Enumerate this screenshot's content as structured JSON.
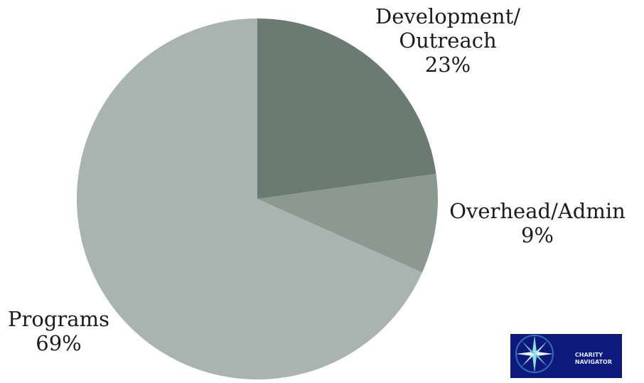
{
  "chart_data": {
    "type": "pie",
    "title": "",
    "slices": [
      {
        "label": "Development/ Outreach",
        "label_lines": [
          "Development/",
          "Outreach"
        ],
        "value": 23,
        "value_text": "23%",
        "color": "#6b7a72"
      },
      {
        "label": "Overhead/Admin",
        "label_lines": [
          "Overhead/Admin"
        ],
        "value": 9,
        "value_text": "9%",
        "color": "#8b9992"
      },
      {
        "label": "Programs",
        "label_lines": [
          "Programs"
        ],
        "value": 69,
        "value_text": "69%",
        "color": "#a9b4b0"
      }
    ],
    "start_angle_deg": 0,
    "direction": "clockwise",
    "legend": "none"
  },
  "logo": {
    "text_lines": [
      "CHARITY",
      "NAVIGATOR"
    ],
    "background": "#0d1a7c",
    "icon": "compass-star-icon"
  }
}
